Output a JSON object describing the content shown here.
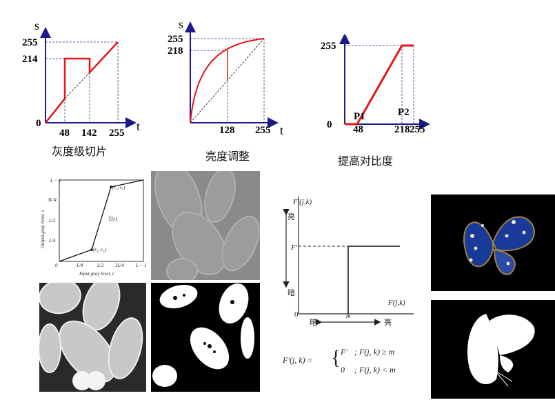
{
  "graph1": {
    "y_label": "s",
    "x_label": "t",
    "y_ticks": [
      "255",
      "214",
      "0"
    ],
    "x_ticks": [
      "48",
      "142",
      "255"
    ],
    "caption": "灰度级切片"
  },
  "graph2": {
    "y_label": "s",
    "x_label": "t",
    "y_ticks": [
      "255",
      "218"
    ],
    "x_ticks": [
      "128",
      "255"
    ],
    "caption": "亮度调整"
  },
  "graph3": {
    "y_ticks": [
      "255",
      "0"
    ],
    "x_ticks": [
      "48",
      "218",
      "255"
    ],
    "points": [
      "P1",
      "P2"
    ],
    "caption": "提高对比度"
  },
  "stretch_plot": {
    "y_axis_title": "Output gray level, s",
    "x_axis_title": "Input gray level, r",
    "y_ticks": [
      "L − 1",
      "3L/4",
      "L/2",
      "L/4",
      "0"
    ],
    "x_ticks": [
      "0",
      "L/4",
      "L/2",
      "3L/4",
      "L − 1"
    ],
    "curve_label": "T(r)",
    "point1": "(r₁, s₁)",
    "point2": "(r₂, s₂)"
  },
  "threshold_plot": {
    "y_axis_title": "F′(j,k)",
    "x_axis_title": "F(j,k)",
    "bright": "亮",
    "dark": "暗",
    "level": "F′",
    "origin": "0",
    "m": "m",
    "formula_lhs": "F′(j, k) =",
    "case1_value": "F′",
    "case1_cond": ";   F(j, k) ≥ m",
    "case2_value": "0",
    "case2_cond": ";   F(j, k) < m"
  },
  "colors": {
    "axis": "#1a1a8c",
    "curve": "#e81414",
    "guide": "#5060a0"
  }
}
